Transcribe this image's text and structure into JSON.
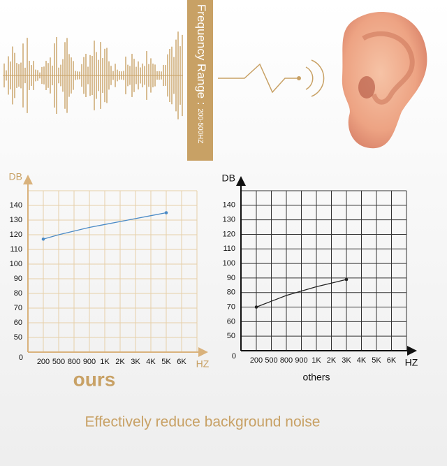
{
  "banner": {
    "text": "Frequency Range : ",
    "range": "200-500HZ"
  },
  "chart_data": [
    {
      "type": "line",
      "caption": "ours",
      "xlabel": "HZ",
      "ylabel": "DB",
      "origin_label": "0",
      "categories": [
        "200",
        "500",
        "800",
        "900",
        "1K",
        "2K",
        "3K",
        "4K",
        "5K",
        "6K"
      ],
      "ylim": [
        40,
        150
      ],
      "yticks": [
        50,
        60,
        70,
        80,
        90,
        100,
        110,
        120,
        130,
        140
      ],
      "grid": true,
      "axis_color": "#d9b27c",
      "grid_color": "#e6cfa8",
      "series": [
        {
          "color": "#4a8ac6",
          "values": [
            117,
            120,
            122.5,
            125,
            127,
            129,
            131,
            133,
            135,
            null
          ]
        }
      ]
    },
    {
      "type": "line",
      "caption": "others",
      "xlabel": "HZ",
      "ylabel": "DB",
      "origin_label": "0",
      "categories": [
        "200",
        "500",
        "800",
        "900",
        "1K",
        "2K",
        "3K",
        "4K",
        "5K",
        "6K"
      ],
      "ylim": [
        40,
        150
      ],
      "yticks": [
        50,
        60,
        70,
        80,
        90,
        100,
        110,
        120,
        130,
        140
      ],
      "grid": true,
      "axis_color": "#111111",
      "grid_color": "#333333",
      "series": [
        {
          "color": "#222222",
          "values": [
            70,
            74,
            78,
            81,
            84,
            86.5,
            89,
            null,
            null,
            null
          ]
        }
      ]
    }
  ],
  "footer": "Effectively reduce background noise"
}
